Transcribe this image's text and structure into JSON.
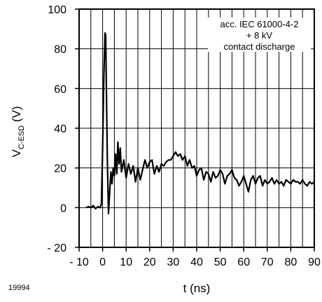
{
  "chart_data": {
    "type": "line",
    "title": "",
    "figure_id": "19994",
    "xlabel": "t (ns)",
    "ylabel": {
      "main": "V",
      "subscript": "C-ESD",
      "unit": " (V)"
    },
    "xlim": [
      -10,
      90
    ],
    "ylim": [
      -20,
      100
    ],
    "x_ticks": [
      -10,
      0,
      10,
      20,
      30,
      40,
      50,
      60,
      70,
      80,
      90
    ],
    "x_tick_labels": [
      "- 10",
      "0",
      "10",
      "20",
      "30",
      "40",
      "50",
      "60",
      "70",
      "80",
      "90"
    ],
    "y_ticks": [
      -20,
      0,
      20,
      40,
      60,
      80,
      100
    ],
    "y_tick_labels": [
      "- 20",
      "0",
      "20",
      "40",
      "60",
      "80",
      "100"
    ],
    "grid": {
      "vertical_step": 5,
      "horizontal_step": 20
    },
    "annotation": [
      "acc. IEC 61000-4-2",
      "+ 8 kV",
      "contact discharge"
    ],
    "annotation_placement": "top-right",
    "series": [
      {
        "color": "#000000",
        "x": [
          -7,
          -6,
          -5,
          -4,
          -3,
          -2,
          -1,
          -0.5,
          0,
          0.5,
          1,
          1.3,
          1.6,
          2,
          2.5,
          3,
          3.5,
          4,
          4.5,
          5,
          5.5,
          6,
          6.5,
          7,
          7.5,
          8,
          9,
          10,
          11,
          12,
          13,
          14,
          15,
          16,
          17,
          18,
          19,
          20,
          21,
          22,
          23,
          24,
          25,
          26,
          27,
          28,
          29,
          30,
          31,
          32,
          33,
          34,
          35,
          36,
          37,
          38,
          39,
          40,
          41,
          42,
          43,
          44,
          45,
          46,
          47,
          48,
          49,
          50,
          51,
          52,
          53,
          54,
          55,
          56,
          57,
          58,
          59,
          60,
          61,
          62,
          63,
          64,
          65,
          66,
          67,
          68,
          69,
          70,
          71,
          72,
          73,
          74,
          75,
          76,
          77,
          78,
          79,
          80,
          81,
          82,
          83,
          84,
          85,
          86,
          87,
          88,
          89,
          90
        ],
        "y": [
          0,
          0.5,
          0,
          1,
          -0.5,
          0.5,
          0,
          2,
          30,
          65,
          88,
          87,
          60,
          25,
          -3,
          8,
          18,
          12,
          20,
          16,
          27,
          17,
          33,
          22,
          30,
          18,
          24,
          15,
          22,
          17,
          21,
          13,
          20,
          14,
          19,
          24,
          20,
          23,
          24,
          17,
          21,
          18,
          22,
          21,
          23,
          24,
          24,
          26,
          28,
          26,
          27,
          24,
          26,
          21,
          24,
          20,
          21,
          16,
          19,
          20,
          14,
          18,
          17,
          13,
          18,
          15,
          16,
          19,
          17,
          12,
          16,
          17,
          19,
          15,
          14,
          11,
          13,
          16,
          12,
          8,
          14,
          16,
          12,
          15,
          16,
          11,
          14,
          12,
          13,
          15,
          12,
          14,
          12,
          13,
          11,
          14,
          13,
          12,
          14,
          13,
          13,
          12,
          14,
          12,
          11,
          13,
          12,
          13
        ]
      }
    ]
  }
}
